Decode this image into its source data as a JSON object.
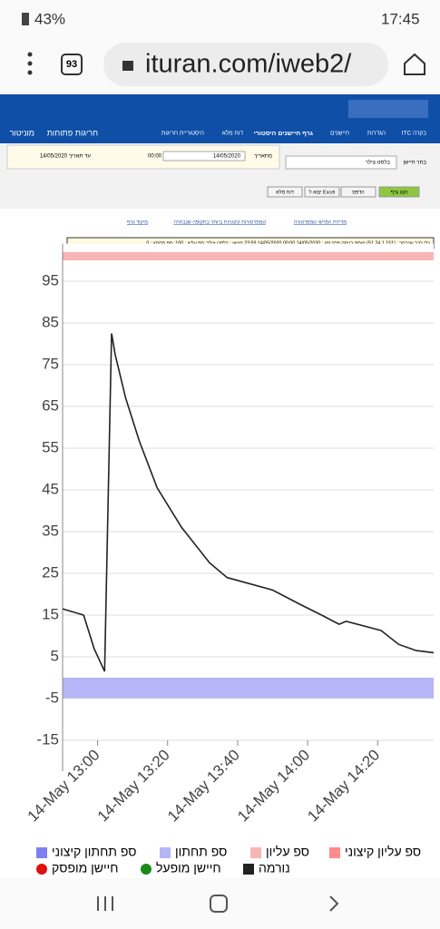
{
  "status_bar": {
    "battery": "43%",
    "time": "17:45"
  },
  "browser": {
    "tabs": "93",
    "url": "ituran.com/iweb2/"
  },
  "menu": [
    "ITC בקרה",
    "הגדרות",
    "חיישנים",
    "גרף חיישנים היסטורי",
    "דוח מלא",
    "היסטוריית חריגות"
  ],
  "menu_left": [
    "חריגות פתוחות",
    "מוניטור"
  ],
  "form": {
    "from_label": "מתאריך",
    "from_date": "14/05/2020",
    "from_time": "00:00",
    "to_label": "עד תאריך",
    "to_date": "14/05/2020",
    "sensor_label": "בחר חיישן",
    "sensor": "בלסט צילר",
    "buttons": [
      "הצג גרף",
      "הדפס",
      "יצוא ל Excel",
      "דוח מלא"
    ],
    "links": [
      "מדידת הפרשי טמפרטורה",
      "טמפרטורות קיצוניות ביותר בתקופה שנבחרה",
      "מיקוד גרף"
    ]
  },
  "info_bar": "כלי רכב שנבחר : (51.24.1.151) מוסם כניסה  פרק זמן : 14/05/2020 00:00 14/05/2020 23:59 חיישן : בלסט צילר; ספ עליון : 100; ספ תחתון : 0",
  "chart_data": {
    "type": "line",
    "x": [
      "12:50",
      "12:56",
      "12:59",
      "13:02",
      "13:04",
      "13:05",
      "13:08",
      "13:12",
      "13:17",
      "13:24",
      "13:32",
      "13:37",
      "13:50",
      "13:58",
      "14:04",
      "14:09",
      "14:11",
      "14:21",
      "14:26",
      "14:31",
      "14:36"
    ],
    "series": [
      {
        "name": "נורמה",
        "color": "#222222",
        "values": [
          16.5,
          15,
          7,
          1.5,
          82.5,
          77.5,
          67,
          56.5,
          45.5,
          36,
          27.5,
          24,
          21,
          17.5,
          15,
          12.8,
          13.5,
          11.3,
          8,
          6.5,
          6
        ]
      }
    ],
    "xlim": [
      "12:50",
      "14:36"
    ],
    "xticks": [
      {
        "value": "13:00",
        "label": "14-May 13:00"
      },
      {
        "value": "13:20",
        "label": "14-May 13:20"
      },
      {
        "value": "13:40",
        "label": "14-May 13:40"
      },
      {
        "value": "14:00",
        "label": "14-May 14:00"
      },
      {
        "value": "14:20",
        "label": "14-May 14:20"
      }
    ],
    "ylim": [
      -15,
      104
    ],
    "yticks": [
      95,
      85,
      75,
      65,
      55,
      45,
      35,
      25,
      15,
      5,
      -5,
      -15
    ],
    "grid": true,
    "legend": [
      {
        "name": "ספ עליון קיצוני",
        "color": "#ff8a8a"
      },
      {
        "name": "ספ עליון",
        "color": "#f7b5b5",
        "range": [
          100,
          102
        ]
      },
      {
        "name": "ספ תחתון",
        "color": "#b5b5f7",
        "range": [
          -5,
          0
        ]
      },
      {
        "name": "ספ תחתון קיצוני",
        "color": "#7f7ff0"
      },
      {
        "name": "נורמה",
        "color": "#222222"
      },
      {
        "name": "חיישן מופעל",
        "color": "#1a8a1a"
      },
      {
        "name": "חיישן מופסק",
        "color": "#e01010"
      }
    ]
  }
}
